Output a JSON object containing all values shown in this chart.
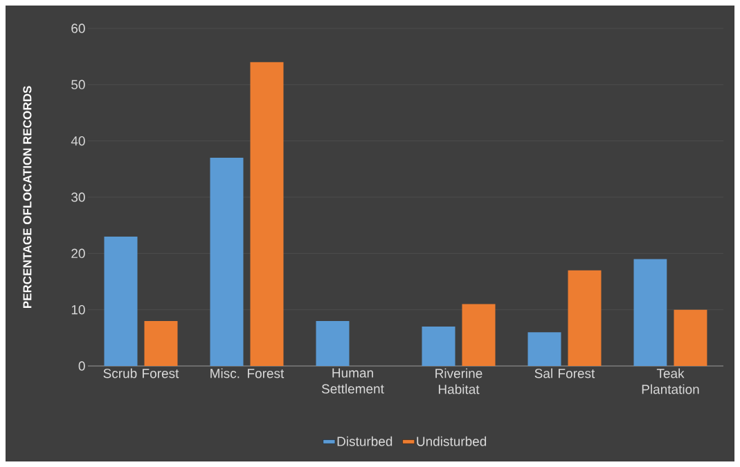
{
  "chart_data": {
    "type": "bar",
    "ylabel": "PERCENTAGE OFLOCATION RECORDS",
    "categories": [
      "Scrub Forest",
      "Misc. Forest",
      "Human Settlement",
      "Riverine Habitat",
      "Sal Forest",
      "Teak Plantation"
    ],
    "series": [
      {
        "name": "Disturbed",
        "color": "#5b9bd5",
        "values": [
          23,
          37,
          8,
          7,
          6,
          19
        ]
      },
      {
        "name": "Undisturbed",
        "color": "#ed7d31",
        "values": [
          8,
          54,
          0,
          11,
          17,
          10
        ]
      }
    ],
    "ylim": [
      0,
      60
    ],
    "yticks": [
      0,
      10,
      20,
      30,
      40,
      50,
      60
    ],
    "grid": "y",
    "legend": "bottom"
  }
}
